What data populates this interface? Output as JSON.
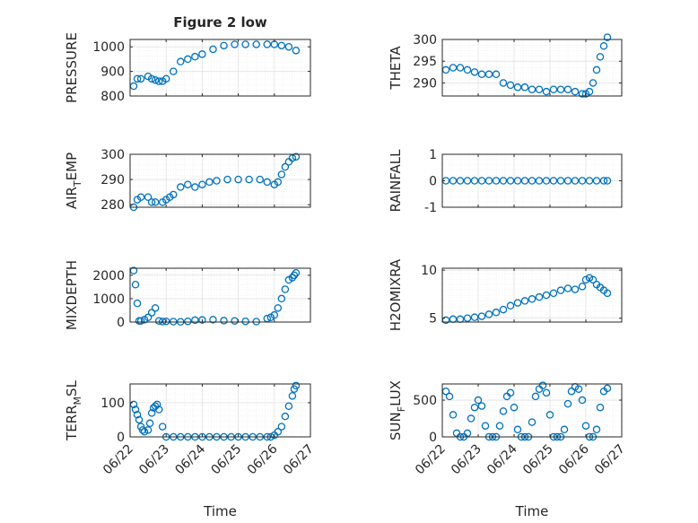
{
  "chart_data": [
    {
      "type": "scatter",
      "title": "Figure 2 low",
      "xlabel": "",
      "ylabel": "PRESSURE",
      "yticks": [
        800,
        900,
        1000
      ],
      "ylim": [
        800,
        1030
      ],
      "grid": "on",
      "xticks": [
        "06/22",
        "06/23",
        "06/24",
        "06/25",
        "06/26",
        "06/27"
      ],
      "xlim": [
        0,
        5
      ],
      "series": [
        {
          "x": [
            0.1,
            0.2,
            0.3,
            0.5,
            0.6,
            0.7,
            0.8,
            0.9,
            1.0,
            1.2,
            1.4,
            1.6,
            1.8,
            2.0,
            2.3,
            2.6,
            2.9,
            3.2,
            3.5,
            3.8,
            4.0,
            4.2,
            4.4,
            4.6
          ],
          "values": [
            840,
            870,
            870,
            880,
            870,
            865,
            860,
            860,
            870,
            900,
            940,
            950,
            960,
            970,
            990,
            1005,
            1010,
            1010,
            1010,
            1010,
            1010,
            1005,
            1000,
            985
          ]
        }
      ]
    },
    {
      "type": "scatter",
      "title": "",
      "xlabel": "",
      "ylabel": "THETA",
      "yticks": [
        290,
        295,
        300
      ],
      "ylim": [
        287,
        300
      ],
      "grid": "on",
      "xticks": [
        "06/22",
        "06/23",
        "06/24",
        "06/25",
        "06/26",
        "06/27"
      ],
      "xlim": [
        0,
        5
      ],
      "series": [
        {
          "x": [
            0.1,
            0.3,
            0.5,
            0.7,
            0.9,
            1.1,
            1.3,
            1.5,
            1.7,
            1.9,
            2.1,
            2.3,
            2.5,
            2.7,
            2.9,
            3.1,
            3.3,
            3.5,
            3.7,
            3.9,
            4.0,
            4.1,
            4.2,
            4.3,
            4.4,
            4.5,
            4.6
          ],
          "values": [
            293,
            293.5,
            293.5,
            293,
            292.5,
            292,
            292,
            292,
            290,
            289.5,
            289,
            289,
            288.5,
            288.5,
            288,
            288.5,
            288.5,
            288.5,
            288,
            287.5,
            287.5,
            288,
            290,
            293,
            296,
            298.5,
            300.5
          ]
        }
      ]
    },
    {
      "type": "scatter",
      "title": "",
      "xlabel": "",
      "ylabel_main": "AIR",
      "ylabel_sub": "T",
      "ylabel_rest": "EMP",
      "yticks": [
        280,
        290,
        300
      ],
      "ylim": [
        279,
        300
      ],
      "grid": "on",
      "xticks": [
        "06/22",
        "06/23",
        "06/24",
        "06/25",
        "06/26",
        "06/27"
      ],
      "xlim": [
        0,
        5
      ],
      "series": [
        {
          "x": [
            0.1,
            0.2,
            0.3,
            0.5,
            0.6,
            0.7,
            0.9,
            1.0,
            1.1,
            1.2,
            1.4,
            1.6,
            1.8,
            2.0,
            2.2,
            2.4,
            2.7,
            3.0,
            3.3,
            3.6,
            3.8,
            4.0,
            4.1,
            4.2,
            4.3,
            4.4,
            4.5,
            4.6
          ],
          "values": [
            279,
            282,
            283,
            283,
            281,
            281,
            281,
            282,
            283,
            284,
            287,
            288,
            287,
            288,
            289,
            289.5,
            290,
            290,
            290,
            290,
            289,
            288,
            289,
            292,
            295,
            297,
            298.5,
            299
          ]
        }
      ]
    },
    {
      "type": "scatter",
      "title": "",
      "xlabel": "",
      "ylabel": "RAINFALL",
      "yticks": [
        -1,
        0,
        1
      ],
      "ylim": [
        -1,
        1
      ],
      "grid": "on",
      "xticks": [
        "06/22",
        "06/23",
        "06/24",
        "06/25",
        "06/26",
        "06/27"
      ],
      "xlim": [
        0,
        5
      ],
      "series": [
        {
          "x": [
            0.1,
            0.3,
            0.5,
            0.7,
            0.9,
            1.1,
            1.3,
            1.5,
            1.7,
            1.9,
            2.1,
            2.3,
            2.5,
            2.7,
            2.9,
            3.1,
            3.3,
            3.5,
            3.7,
            3.9,
            4.1,
            4.3,
            4.5,
            4.6
          ],
          "values": [
            0,
            0,
            0,
            0,
            0,
            0,
            0,
            0,
            0,
            0,
            0,
            0,
            0,
            0,
            0,
            0,
            0,
            0,
            0,
            0,
            0,
            0,
            0,
            0
          ]
        }
      ]
    },
    {
      "type": "scatter",
      "title": "",
      "xlabel": "",
      "ylabel": "MIXDEPTH",
      "yticks": [
        0,
        1000,
        2000
      ],
      "ylim": [
        0,
        2300
      ],
      "grid": "on",
      "xticks": [
        "06/22",
        "06/23",
        "06/24",
        "06/25",
        "06/26",
        "06/27"
      ],
      "xlim": [
        0,
        5
      ],
      "series": [
        {
          "x": [
            0.1,
            0.15,
            0.2,
            0.25,
            0.3,
            0.4,
            0.5,
            0.6,
            0.7,
            0.8,
            0.9,
            1.0,
            1.2,
            1.4,
            1.6,
            1.8,
            2.0,
            2.3,
            2.6,
            2.9,
            3.2,
            3.5,
            3.8,
            3.9,
            4.0,
            4.1,
            4.2,
            4.3,
            4.4,
            4.5,
            4.55,
            4.6
          ],
          "values": [
            2200,
            1600,
            800,
            50,
            50,
            100,
            200,
            400,
            600,
            50,
            20,
            30,
            20,
            10,
            30,
            80,
            90,
            100,
            60,
            50,
            30,
            20,
            150,
            200,
            300,
            600,
            1000,
            1400,
            1800,
            1900,
            2000,
            2100
          ]
        }
      ]
    },
    {
      "type": "scatter",
      "title": "",
      "xlabel": "",
      "ylabel": "H2OMIXRA",
      "yticks": [
        5,
        10
      ],
      "ylim": [
        4.6,
        10.2
      ],
      "grid": "on",
      "xticks": [
        "06/22",
        "06/23",
        "06/24",
        "06/25",
        "06/26",
        "06/27"
      ],
      "xlim": [
        0,
        5
      ],
      "series": [
        {
          "x": [
            0.1,
            0.3,
            0.5,
            0.7,
            0.9,
            1.1,
            1.3,
            1.5,
            1.7,
            1.9,
            2.1,
            2.3,
            2.5,
            2.7,
            2.9,
            3.1,
            3.3,
            3.5,
            3.7,
            3.9,
            4.0,
            4.1,
            4.2,
            4.3,
            4.4,
            4.5,
            4.6
          ],
          "values": [
            4.8,
            4.9,
            4.9,
            5.0,
            5.1,
            5.2,
            5.4,
            5.6,
            5.9,
            6.3,
            6.6,
            6.8,
            7.0,
            7.2,
            7.4,
            7.6,
            7.9,
            8.1,
            8.0,
            8.3,
            9.0,
            9.2,
            9.0,
            8.5,
            8.2,
            7.9,
            7.6
          ]
        }
      ]
    },
    {
      "type": "scatter",
      "title": "",
      "xlabel": "Time",
      "ylabel_main": "TERR",
      "ylabel_sub": "M",
      "ylabel_rest": "SL",
      "yticks": [
        0,
        100
      ],
      "ylim": [
        0,
        155
      ],
      "grid": "on",
      "xticks": [
        "06/22",
        "06/23",
        "06/24",
        "06/25",
        "06/26",
        "06/27"
      ],
      "xlim": [
        0,
        5
      ],
      "series": [
        {
          "x": [
            0.1,
            0.15,
            0.2,
            0.25,
            0.3,
            0.35,
            0.4,
            0.5,
            0.55,
            0.6,
            0.65,
            0.7,
            0.75,
            0.8,
            0.9,
            1.0,
            1.2,
            1.4,
            1.6,
            1.8,
            2.0,
            2.2,
            2.4,
            2.6,
            2.8,
            3.0,
            3.2,
            3.4,
            3.6,
            3.8,
            3.9,
            4.0,
            4.1,
            4.2,
            4.3,
            4.4,
            4.5,
            4.55,
            4.6
          ],
          "values": [
            95,
            80,
            65,
            50,
            30,
            20,
            15,
            20,
            40,
            70,
            85,
            90,
            95,
            80,
            30,
            0,
            0,
            0,
            0,
            0,
            0,
            0,
            0,
            0,
            0,
            0,
            0,
            0,
            0,
            0,
            0,
            5,
            15,
            30,
            60,
            90,
            120,
            140,
            150
          ]
        }
      ]
    },
    {
      "type": "scatter",
      "title": "",
      "xlabel": "Time",
      "ylabel_main": "SUN",
      "ylabel_sub": "F",
      "ylabel_rest": "LUX",
      "yticks": [
        0,
        500
      ],
      "ylim": [
        0,
        720
      ],
      "grid": "on",
      "xticks": [
        "06/22",
        "06/23",
        "06/24",
        "06/25",
        "06/26",
        "06/27"
      ],
      "xlim": [
        0,
        5
      ],
      "series": [
        {
          "x": [
            0.1,
            0.2,
            0.3,
            0.4,
            0.5,
            0.6,
            0.7,
            0.8,
            0.9,
            1.0,
            1.1,
            1.2,
            1.3,
            1.4,
            1.5,
            1.6,
            1.7,
            1.8,
            1.9,
            2.0,
            2.1,
            2.2,
            2.3,
            2.4,
            2.5,
            2.6,
            2.7,
            2.8,
            2.9,
            3.0,
            3.1,
            3.2,
            3.3,
            3.4,
            3.5,
            3.6,
            3.7,
            3.8,
            3.9,
            4.0,
            4.1,
            4.2,
            4.3,
            4.4,
            4.5,
            4.6
          ],
          "values": [
            620,
            550,
            300,
            50,
            0,
            0,
            50,
            250,
            400,
            500,
            420,
            150,
            0,
            0,
            0,
            150,
            350,
            550,
            600,
            400,
            100,
            0,
            0,
            0,
            200,
            550,
            650,
            700,
            600,
            300,
            0,
            0,
            0,
            100,
            450,
            620,
            680,
            650,
            500,
            150,
            0,
            0,
            100,
            400,
            620,
            660
          ]
        }
      ]
    }
  ]
}
